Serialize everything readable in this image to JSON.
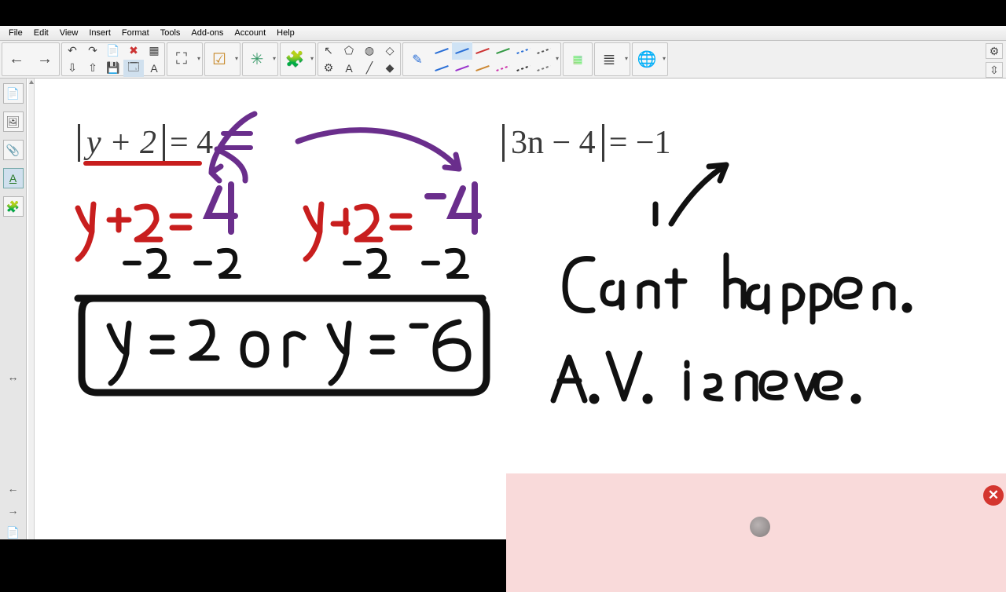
{
  "menubar": {
    "items": [
      "File",
      "Edit",
      "View",
      "Insert",
      "Format",
      "Tools",
      "Add-ons",
      "Account",
      "Help"
    ]
  },
  "toolbar": {
    "nav": {
      "back": "←",
      "forward": "→"
    },
    "edit": {
      "undo": "↶",
      "redo": "↷",
      "new_page": "📄",
      "delete": "✖",
      "table": "▦",
      "import": "⇩",
      "export": "⇧",
      "save": "💾",
      "gallery": "🗔",
      "text_a": "A"
    },
    "zoom": {
      "zoom_area": "⛶",
      "dd": "▾"
    },
    "cam": {
      "capture": "☑",
      "dd": "▾"
    },
    "math": {
      "graph": "✳",
      "dd": "▾"
    },
    "addons": {
      "puzzle": "🧩",
      "dd": "▾"
    },
    "select": {
      "pointer": "↖",
      "shape": "⬠",
      "fill": "◍",
      "eraser2": "◇",
      "sliders": "⚙",
      "text": "A",
      "line": "╱",
      "eraser": "◆"
    },
    "pens": {
      "row1_colors": [
        "#2a6fd6",
        "#2a6fd6",
        "#cc3333",
        "#339944",
        "#2a6fd6",
        "#555555"
      ],
      "row2_colors": [
        "#2a6fd6",
        "#9933cc",
        "#cc8833",
        "#cc33aa",
        "#333333",
        "#777777"
      ],
      "selected_index": 1
    },
    "view": {
      "grid": "▦",
      "layout": "≣",
      "globe": "🌐"
    },
    "right": {
      "gear": "⚙",
      "resize": "⇳"
    }
  },
  "sidebar": {
    "items": [
      {
        "name": "page-sorter",
        "glyph": "📄"
      },
      {
        "name": "gallery",
        "glyph": "🖼"
      },
      {
        "name": "attach",
        "glyph": "📎"
      },
      {
        "name": "text-style",
        "glyph": "A",
        "selected": true
      },
      {
        "name": "addons",
        "glyph": "🧩"
      }
    ],
    "collapse": "↔",
    "nav_back": "←",
    "nav_fwd": "→",
    "page_add": "📄"
  },
  "whiteboard": {
    "equations": {
      "eq1": {
        "lhs": "y + 2",
        "rhs": "= 4"
      },
      "eq2": {
        "lhs": "3n − 4",
        "rhs": "= −1"
      }
    },
    "handwriting": {
      "purple": "#6a2e8c",
      "red": "#c81e1e",
      "black": "#111111",
      "line1_left": "y+2 = 4",
      "line1_right": "y+2 = -4",
      "sub_left": "-2  -2",
      "sub_right": "-2   -2",
      "answer": "y = 2  or  y = -6",
      "note1": "Can't happen.",
      "note2": "A.V. is neve."
    },
    "overlay": {
      "close_label": "✕"
    }
  }
}
